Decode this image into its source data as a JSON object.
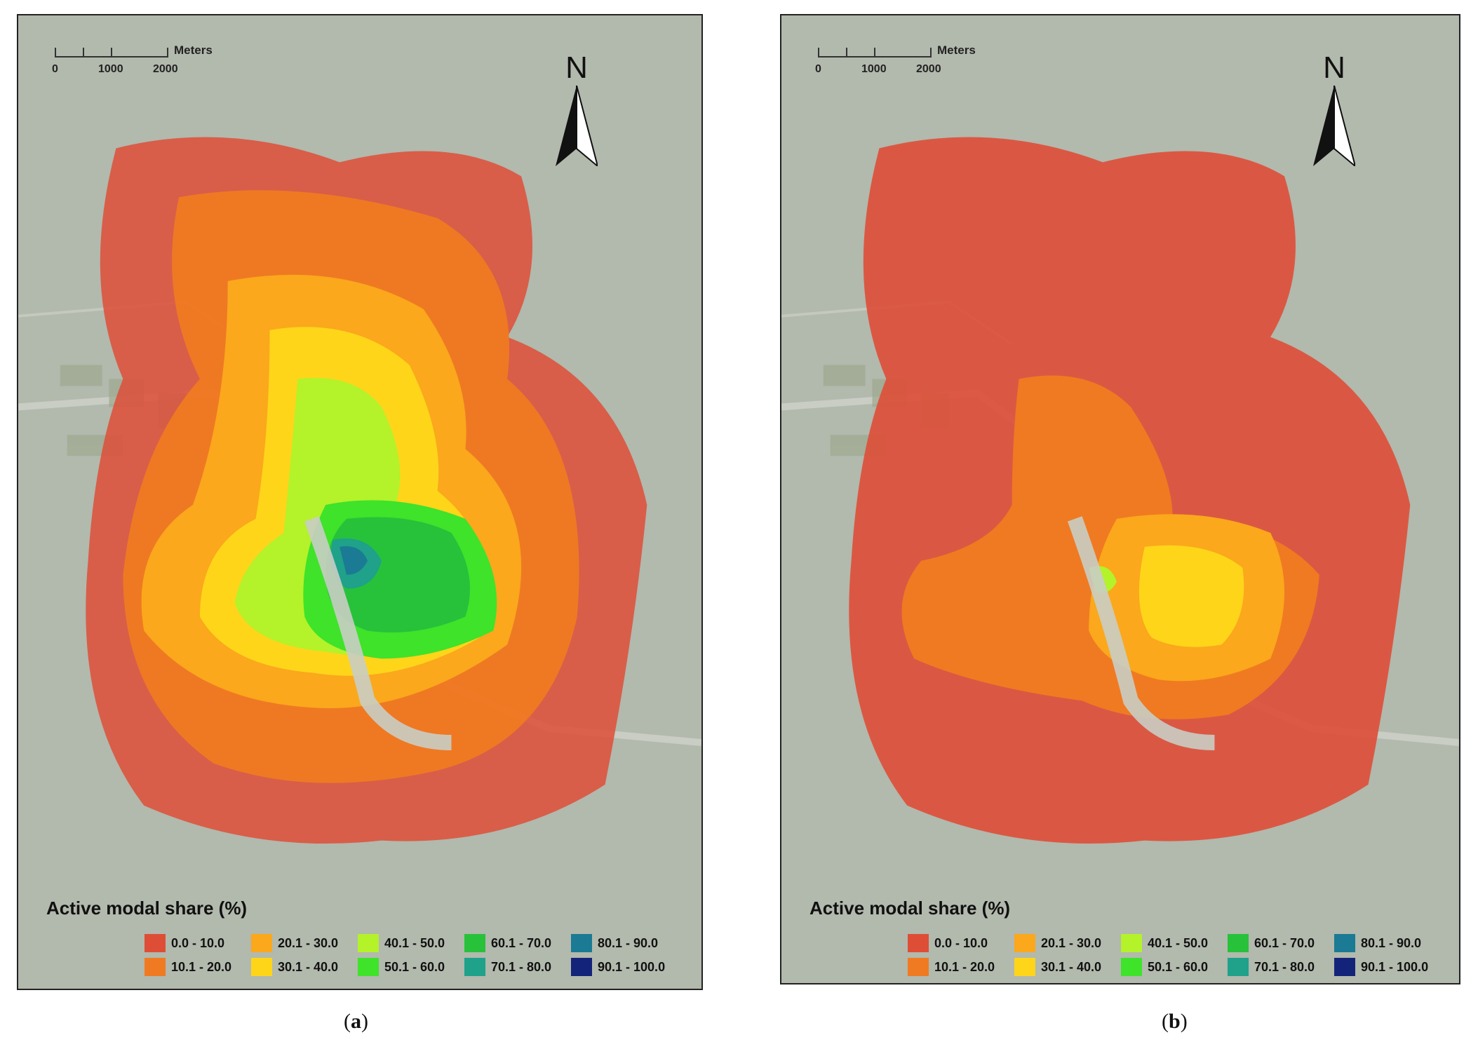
{
  "legend": {
    "title": "Active modal share (%)",
    "classes": [
      {
        "label": "0.0 - 10.0",
        "color": "#de4e37"
      },
      {
        "label": "10.1 - 20.0",
        "color": "#f07a22"
      },
      {
        "label": "20.1 - 30.0",
        "color": "#fba81c"
      },
      {
        "label": "30.1 - 40.0",
        "color": "#ffd51a"
      },
      {
        "label": "40.1 - 50.0",
        "color": "#b4f22a"
      },
      {
        "label": "50.1 - 60.0",
        "color": "#3ee32a"
      },
      {
        "label": "60.1 - 70.0",
        "color": "#27c23a"
      },
      {
        "label": "70.1 - 80.0",
        "color": "#1fa18a"
      },
      {
        "label": "80.1 - 90.0",
        "color": "#1b7a94"
      },
      {
        "label": "90.1 - 100.0",
        "color": "#14237a"
      }
    ]
  },
  "scalebar": {
    "unit": "Meters",
    "labels": [
      "0",
      "1000",
      "2000"
    ]
  },
  "north_label": "N",
  "panels": [
    {
      "id": "a",
      "caption_open": "(",
      "caption_letter": "a",
      "caption_close": ")"
    },
    {
      "id": "b",
      "caption_open": "(",
      "caption_letter": "b",
      "caption_close": ")"
    }
  ]
}
